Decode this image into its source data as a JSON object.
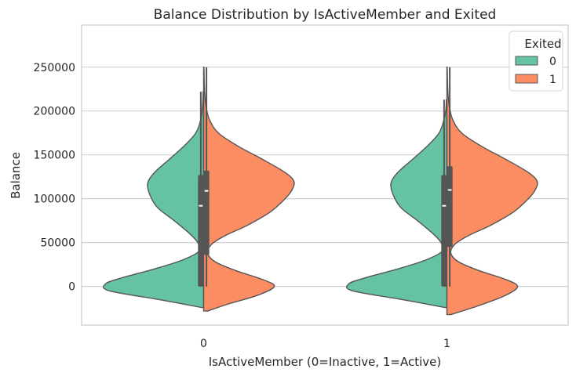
{
  "chart_data": {
    "type": "violin",
    "title": "Balance Distribution by IsActiveMember and Exited",
    "xlabel": "IsActiveMember (0=Inactive, 1=Active)",
    "ylabel": "Balance",
    "categories": [
      "0",
      "1"
    ],
    "yticks": [
      0,
      50000,
      100000,
      150000,
      200000,
      250000
    ],
    "ylim": [
      -44000,
      298000
    ],
    "grid": true,
    "split": true,
    "legend": {
      "title": "Exited",
      "position": "top-right",
      "entries": [
        {
          "label": "0",
          "color": "#66c2a5"
        },
        {
          "label": "1",
          "color": "#fc8d62"
        }
      ]
    },
    "series": [
      {
        "name": "0",
        "color": "#66c2a5",
        "groups": [
          {
            "category": "0",
            "density": [
              [
                -24000,
                0.02
              ],
              [
                -15000,
                0.45
              ],
              [
                -5000,
                0.96
              ],
              [
                3000,
                1.0
              ],
              [
                10000,
                0.83
              ],
              [
                20000,
                0.5
              ],
              [
                30000,
                0.22
              ],
              [
                40000,
                0.05
              ],
              [
                50000,
                0.06
              ],
              [
                60000,
                0.14
              ],
              [
                75000,
                0.3
              ],
              [
                90000,
                0.47
              ],
              [
                105000,
                0.55
              ],
              [
                118000,
                0.57
              ],
              [
                130000,
                0.5
              ],
              [
                145000,
                0.35
              ],
              [
                160000,
                0.2
              ],
              [
                175000,
                0.08
              ],
              [
                190000,
                0.03
              ],
              [
                205000,
                0.012
              ],
              [
                222000,
                0.005
              ]
            ],
            "box": {
              "q1": 0,
              "median": 92000,
              "q3": 127000,
              "whisker_low": 0,
              "whisker_high": 222000
            }
          },
          {
            "category": "1",
            "density": [
              [
                -24000,
                0.02
              ],
              [
                -15000,
                0.45
              ],
              [
                -5000,
                0.96
              ],
              [
                3000,
                1.0
              ],
              [
                10000,
                0.83
              ],
              [
                20000,
                0.5
              ],
              [
                30000,
                0.22
              ],
              [
                40000,
                0.05
              ],
              [
                50000,
                0.06
              ],
              [
                60000,
                0.14
              ],
              [
                75000,
                0.3
              ],
              [
                90000,
                0.47
              ],
              [
                105000,
                0.55
              ],
              [
                118000,
                0.57
              ],
              [
                130000,
                0.5
              ],
              [
                145000,
                0.35
              ],
              [
                160000,
                0.2
              ],
              [
                175000,
                0.08
              ],
              [
                190000,
                0.03
              ],
              [
                200000,
                0.012
              ],
              [
                213000,
                0.005
              ]
            ],
            "box": {
              "q1": 0,
              "median": 92000,
              "q3": 127000,
              "whisker_low": 0,
              "whisker_high": 213000
            }
          }
        ]
      },
      {
        "name": "1",
        "color": "#fc8d62",
        "groups": [
          {
            "category": "0",
            "density": [
              [
                -28000,
                0.04
              ],
              [
                -20000,
                0.25
              ],
              [
                -10000,
                0.55
              ],
              [
                0,
                0.72
              ],
              [
                8000,
                0.6
              ],
              [
                18000,
                0.33
              ],
              [
                28000,
                0.12
              ],
              [
                38000,
                0.04
              ],
              [
                48000,
                0.08
              ],
              [
                58000,
                0.22
              ],
              [
                70000,
                0.45
              ],
              [
                85000,
                0.68
              ],
              [
                100000,
                0.83
              ],
              [
                110000,
                0.9
              ],
              [
                120000,
                0.92
              ],
              [
                130000,
                0.83
              ],
              [
                145000,
                0.6
              ],
              [
                160000,
                0.35
              ],
              [
                175000,
                0.15
              ],
              [
                190000,
                0.06
              ],
              [
                205000,
                0.025
              ],
              [
                222000,
                0.01
              ],
              [
                250000,
                0.003
              ]
            ],
            "box": {
              "q1": 36000,
              "median": 109000,
              "q3": 132000,
              "whisker_low": 0,
              "whisker_high": 250000
            }
          },
          {
            "category": "1",
            "density": [
              [
                -32000,
                0.04
              ],
              [
                -22000,
                0.32
              ],
              [
                -10000,
                0.6
              ],
              [
                0,
                0.72
              ],
              [
                8000,
                0.6
              ],
              [
                18000,
                0.33
              ],
              [
                28000,
                0.12
              ],
              [
                38000,
                0.04
              ],
              [
                48000,
                0.08
              ],
              [
                58000,
                0.22
              ],
              [
                70000,
                0.45
              ],
              [
                85000,
                0.68
              ],
              [
                100000,
                0.83
              ],
              [
                110000,
                0.9
              ],
              [
                120000,
                0.92
              ],
              [
                130000,
                0.83
              ],
              [
                145000,
                0.6
              ],
              [
                160000,
                0.35
              ],
              [
                175000,
                0.15
              ],
              [
                190000,
                0.06
              ],
              [
                205000,
                0.025
              ],
              [
                222000,
                0.01
              ],
              [
                250000,
                0.003
              ]
            ],
            "box": {
              "q1": 45000,
              "median": 110000,
              "q3": 137000,
              "whisker_low": 0,
              "whisker_high": 250000
            }
          }
        ]
      }
    ]
  }
}
